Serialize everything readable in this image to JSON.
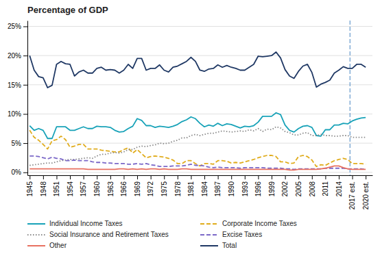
{
  "chart_data": {
    "type": "line",
    "title": "Percentage of GDP",
    "x": [
      1945,
      1946,
      1947,
      1948,
      1949,
      1950,
      1951,
      1952,
      1953,
      1954,
      1955,
      1956,
      1957,
      1958,
      1959,
      1960,
      1961,
      1962,
      1963,
      1964,
      1965,
      1966,
      1967,
      1968,
      1969,
      1970,
      1971,
      1972,
      1973,
      1974,
      1975,
      1976,
      1977,
      1978,
      1979,
      1980,
      1981,
      1982,
      1983,
      1984,
      1985,
      1986,
      1987,
      1988,
      1989,
      1990,
      1991,
      1992,
      1993,
      1994,
      1995,
      1996,
      1997,
      1998,
      1999,
      2000,
      2001,
      2002,
      2003,
      2004,
      2005,
      2006,
      2007,
      2008,
      2009,
      2010,
      2011,
      2012,
      2013,
      2014,
      2015,
      2016,
      2017,
      2018,
      2019,
      2020
    ],
    "series": [
      {
        "name": "Individual Income Taxes",
        "color": "#17a2b8",
        "line_style": "solid",
        "values": [
          8.0,
          7.2,
          7.5,
          7.2,
          5.8,
          5.8,
          7.8,
          7.8,
          7.8,
          7.2,
          7.2,
          7.5,
          7.8,
          7.5,
          7.5,
          7.9,
          7.8,
          7.8,
          7.7,
          7.2,
          6.9,
          7.0,
          7.5,
          7.9,
          9.2,
          8.9,
          8.0,
          8.0,
          7.7,
          7.9,
          7.8,
          7.7,
          7.9,
          8.2,
          8.7,
          9.0,
          9.5,
          9.2,
          8.4,
          7.8,
          8.1,
          7.9,
          8.4,
          8.0,
          8.3,
          8.2,
          7.9,
          7.6,
          7.9,
          7.8,
          8.0,
          8.6,
          9.6,
          9.6,
          9.6,
          10.2,
          9.9,
          8.1,
          7.2,
          6.9,
          7.5,
          7.9,
          8.0,
          7.7,
          6.3,
          6.2,
          7.3,
          7.3,
          8.1,
          8.1,
          8.4,
          8.3,
          8.8,
          9.1,
          9.3,
          9.4
        ]
      },
      {
        "name": "Corporate Income Taxes",
        "color": "#e0ac1c",
        "line_style": "dashed",
        "values": [
          7.2,
          6.0,
          5.5,
          4.8,
          4.0,
          5.4,
          5.6,
          6.2,
          5.6,
          4.3,
          4.5,
          4.8,
          4.8,
          4.0,
          4.0,
          4.0,
          3.8,
          3.7,
          3.6,
          3.5,
          3.5,
          3.9,
          4.2,
          3.3,
          3.9,
          3.2,
          2.5,
          2.7,
          2.8,
          2.7,
          2.6,
          2.4,
          2.1,
          1.5,
          1.5,
          2.0,
          2.0,
          1.5,
          1.1,
          1.5,
          1.5,
          1.4,
          2.0,
          2.0,
          1.9,
          1.6,
          1.7,
          1.6,
          1.8,
          2.0,
          2.2,
          2.5,
          2.7,
          2.9,
          2.9,
          2.7,
          1.8,
          1.8,
          1.5,
          1.6,
          2.7,
          2.9,
          2.7,
          2.1,
          1.0,
          1.3,
          1.2,
          1.6,
          2.0,
          2.2,
          2.4,
          2.2,
          1.5,
          1.5,
          1.5,
          1.4
        ]
      },
      {
        "name": "Social Insurance and Retirement Taxes",
        "color": "#888888",
        "line_style": "dotted",
        "values": [
          1.2,
          1.3,
          1.4,
          1.5,
          1.6,
          1.6,
          1.8,
          2.0,
          2.1,
          2.2,
          2.2,
          2.3,
          2.4,
          2.5,
          2.4,
          2.8,
          3.1,
          3.1,
          3.3,
          3.4,
          3.3,
          3.5,
          3.9,
          3.9,
          4.3,
          4.5,
          4.4,
          4.6,
          4.7,
          5.0,
          4.9,
          5.0,
          5.3,
          5.5,
          5.9,
          5.9,
          6.3,
          6.5,
          6.3,
          6.5,
          6.7,
          6.7,
          6.9,
          7.1,
          7.0,
          6.9,
          7.0,
          7.1,
          7.0,
          7.3,
          7.1,
          7.5,
          7.0,
          7.4,
          7.3,
          7.8,
          7.6,
          7.0,
          6.8,
          6.4,
          6.4,
          6.7,
          6.8,
          6.3,
          6.3,
          6.5,
          6.3,
          6.3,
          6.2,
          6.2,
          6.3,
          6.3,
          6.0,
          6.0,
          6.0,
          6.0
        ]
      },
      {
        "name": "Excise Taxes",
        "color": "#7b68c8",
        "line_style": "dashed",
        "values": [
          2.8,
          2.8,
          2.7,
          2.5,
          2.3,
          2.6,
          2.4,
          2.3,
          2.0,
          2.0,
          2.1,
          2.0,
          2.0,
          2.0,
          1.8,
          1.7,
          1.7,
          1.6,
          1.6,
          1.5,
          1.5,
          1.5,
          1.4,
          1.4,
          1.5,
          1.4,
          1.5,
          1.3,
          1.2,
          1.0,
          1.0,
          1.0,
          1.1,
          1.1,
          1.1,
          1.2,
          1.4,
          1.2,
          1.2,
          1.1,
          0.9,
          0.8,
          0.9,
          0.8,
          0.8,
          0.8,
          0.8,
          0.7,
          0.8,
          0.8,
          0.8,
          0.8,
          0.8,
          0.7,
          0.7,
          0.7,
          0.7,
          0.6,
          0.6,
          0.5,
          0.6,
          0.6,
          0.6,
          0.6,
          0.6,
          0.6,
          0.7,
          0.7,
          0.7,
          0.7,
          0.7,
          0.6,
          0.6,
          0.6,
          0.6,
          0.5
        ]
      },
      {
        "name": "Other",
        "color": "#e87060",
        "line_style": "solid",
        "values": [
          0.6,
          0.6,
          0.6,
          0.6,
          0.6,
          0.6,
          0.6,
          0.6,
          0.6,
          0.6,
          0.6,
          0.6,
          0.6,
          0.5,
          0.5,
          0.5,
          0.5,
          0.5,
          0.5,
          0.5,
          0.6,
          0.6,
          0.5,
          0.6,
          0.5,
          0.6,
          0.5,
          0.6,
          0.6,
          0.5,
          0.6,
          0.5,
          0.5,
          0.5,
          0.6,
          0.6,
          0.5,
          0.5,
          0.5,
          0.5,
          0.5,
          0.5,
          0.5,
          0.5,
          0.5,
          0.5,
          0.5,
          0.5,
          0.5,
          0.5,
          0.5,
          0.5,
          0.5,
          0.5,
          0.5,
          0.5,
          0.5,
          0.5,
          0.4,
          0.4,
          0.5,
          0.5,
          0.5,
          0.5,
          0.5,
          0.6,
          0.7,
          0.9,
          1.1,
          1.1,
          0.8,
          0.6,
          0.5,
          0.5,
          0.5,
          0.5
        ]
      },
      {
        "name": "Total",
        "color": "#1f3864",
        "line_style": "solid",
        "values": [
          20.0,
          17.5,
          16.4,
          16.2,
          14.5,
          14.9,
          18.5,
          19.0,
          18.6,
          18.5,
          16.5,
          17.2,
          17.5,
          17.0,
          17.0,
          17.8,
          18.0,
          17.5,
          17.6,
          17.5,
          17.0,
          17.5,
          18.5,
          17.8,
          19.5,
          19.5,
          17.5,
          17.8,
          17.8,
          18.4,
          17.5,
          17.2,
          18.0,
          18.2,
          18.6,
          19.0,
          19.7,
          19.0,
          17.5,
          17.3,
          17.7,
          17.8,
          18.4,
          18.0,
          18.3,
          18.0,
          17.8,
          17.5,
          17.5,
          18.0,
          18.5,
          19.9,
          19.8,
          19.9,
          20.0,
          20.6,
          19.6,
          17.6,
          16.5,
          16.1,
          17.3,
          18.2,
          18.5,
          17.1,
          14.6,
          15.1,
          15.4,
          15.8,
          17.0,
          17.5,
          18.1,
          17.8,
          17.8,
          18.5,
          18.5,
          18.0
        ]
      }
    ],
    "vline": {
      "x": 2016.5,
      "color": "#6699cc",
      "line_style": "dashed"
    },
    "xlim": [
      1944.5,
      2021.5
    ],
    "xticks": [
      1945,
      1948,
      1951,
      1954,
      1957,
      1960,
      1963,
      1966,
      1969,
      1972,
      1975,
      1978,
      1981,
      1984,
      1987,
      1990,
      1993,
      1996,
      1999,
      2002,
      2005,
      2008,
      2011,
      2014,
      {
        "value": 2017,
        "label": "2017 est."
      },
      {
        "value": 2020,
        "label": "2020 est."
      }
    ],
    "ylim": [
      -0.5,
      26
    ],
    "yticks": [
      {
        "value": 0,
        "label": "0%"
      },
      {
        "value": 5,
        "label": "5%"
      },
      {
        "value": 10,
        "label": "10%"
      },
      {
        "value": 15,
        "label": "15%"
      },
      {
        "value": 20,
        "label": "20%"
      },
      {
        "value": 25,
        "label": "25%"
      }
    ],
    "grid": true,
    "legend": "bottom"
  }
}
